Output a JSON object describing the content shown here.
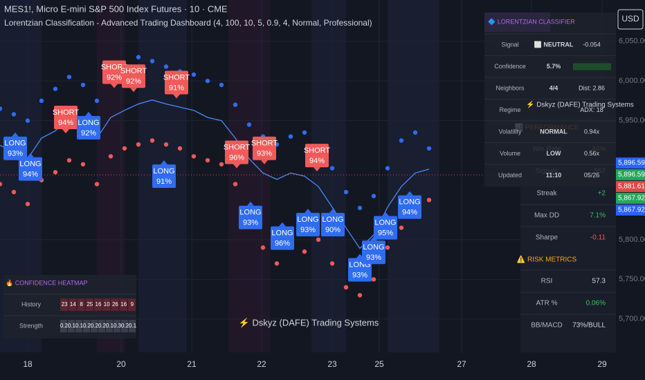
{
  "chart_data": {
    "type": "line",
    "title": "MES1!, Micro E-mini S&P 500 Index Futures · 10 · CME",
    "subtitle": "Lorentzian Classification - Advanced Trading Dashboard (4, 100, 10, 5, 0.9, 4, Normal, Professional)",
    "currency": "USD",
    "watermark": "⚡ Dskyz (DAFE) Trading Systems",
    "overlay_watermark": "⚡ Dskyz (DAFE) Trading Systems",
    "xlim": [
      0,
      890
    ],
    "ylim": [
      5658,
      6102
    ],
    "xticks": [
      {
        "value": 40,
        "label": "18"
      },
      {
        "value": 175,
        "label": "20"
      },
      {
        "value": 277,
        "label": "21"
      },
      {
        "value": 378,
        "label": "22"
      },
      {
        "value": 480,
        "label": "23"
      },
      {
        "value": 548,
        "label": "25"
      },
      {
        "value": 667,
        "label": "27"
      },
      {
        "value": 768,
        "label": "28"
      },
      {
        "value": 870,
        "label": "29"
      }
    ],
    "yticks": [
      {
        "value": 6050,
        "label": "6,050.00"
      },
      {
        "value": 6000,
        "label": "6,000.00"
      },
      {
        "value": 5950,
        "label": "5,950.00"
      },
      {
        "value": 5800,
        "label": "5,800.00"
      },
      {
        "value": 5750,
        "label": "5,750.00"
      },
      {
        "value": 5700,
        "label": "5,700.00"
      }
    ],
    "x": [
      0,
      20,
      40,
      60,
      80,
      100,
      120,
      140,
      160,
      180,
      200,
      220,
      240,
      260,
      280,
      300,
      320,
      340,
      360,
      380,
      400,
      420,
      440,
      460,
      480,
      500,
      520,
      540,
      560,
      580,
      600,
      620
    ],
    "series": [
      {
        "color": "#4a8cf7",
        "values": [
          5919,
          5910,
          5902,
          5928,
          5937,
          5954,
          5945,
          5928,
          5954,
          5963,
          5971,
          5976,
          5971,
          5967,
          5963,
          5954,
          5950,
          5928,
          5902,
          5884,
          5876,
          5884,
          5880,
          5867,
          5841,
          5815,
          5789,
          5806,
          5841,
          5867,
          5884,
          5889
        ]
      },
      {
        "color": "#2f6cf0",
        "dots": true,
        "values": [
          5965,
          5958,
          5950,
          5975,
          5990,
          6005,
          5995,
          5975,
          6010,
          6020,
          6030,
          6025,
          6018,
          6012,
          6008,
          6000,
          5995,
          5970,
          5945,
          5930,
          5920,
          5930,
          5935,
          5915,
          5890,
          5860,
          5840,
          5855,
          5890,
          5925,
          5935,
          5915
        ]
      },
      {
        "color": "#f05a5a",
        "dots": true,
        "values": [
          5870,
          5860,
          5845,
          5875,
          5885,
          5900,
          5895,
          5870,
          5905,
          5915,
          5920,
          5925,
          5920,
          5915,
          5905,
          5900,
          5895,
          5870,
          5840,
          5790,
          5770,
          5790,
          5785,
          5800,
          5770,
          5740,
          5730,
          5750,
          5790,
          5815,
          5835,
          5850
        ]
      }
    ],
    "signals": [
      {
        "text": "LONG",
        "pct": "93%",
        "x": 22,
        "y": 5915
      },
      {
        "text": "LONG",
        "pct": "94%",
        "x": 44,
        "y": 5889
      },
      {
        "text": "SHORT",
        "pct": "94%",
        "x": 95,
        "y": 5954
      },
      {
        "text": "LONG",
        "pct": "92%",
        "x": 128,
        "y": 5941
      },
      {
        "text": "SHORT",
        "pct": "92%",
        "x": 165,
        "y": 6011
      },
      {
        "text": "SHORT",
        "pct": "92%",
        "x": 193,
        "y": 6006
      },
      {
        "text": "SHORT",
        "pct": "91%",
        "x": 255,
        "y": 5998
      },
      {
        "text": "LONG",
        "pct": "91%",
        "x": 237,
        "y": 5880
      },
      {
        "text": "SHORT",
        "pct": "96%",
        "x": 342,
        "y": 5910
      },
      {
        "text": "SHORT",
        "pct": "93%",
        "x": 382,
        "y": 5915
      },
      {
        "text": "SHORT",
        "pct": "94%",
        "x": 458,
        "y": 5906
      },
      {
        "text": "LONG",
        "pct": "93%",
        "x": 362,
        "y": 5828
      },
      {
        "text": "LONG",
        "pct": "96%",
        "x": 408,
        "y": 5802
      },
      {
        "text": "LONG",
        "pct": "93%",
        "x": 445,
        "y": 5819
      },
      {
        "text": "LONG",
        "pct": "90%",
        "x": 481,
        "y": 5819
      },
      {
        "text": "LONG",
        "pct": "93%",
        "x": 520,
        "y": 5762
      },
      {
        "text": "LONG",
        "pct": "93%",
        "x": 540,
        "y": 5784
      },
      {
        "text": "LONG",
        "pct": "95%",
        "x": 557,
        "y": 5815
      },
      {
        "text": "LONG",
        "pct": "94%",
        "x": 592,
        "y": 5841
      }
    ],
    "price_tags": [
      {
        "value": 5896.59,
        "label": "5,896.59",
        "color": "#2962ff"
      },
      {
        "value": 5896.59,
        "label": "5,896.59",
        "color": "#26a65b"
      },
      {
        "value": 5881.61,
        "label": "5,881.61",
        "color": "#e04848"
      },
      {
        "value": 5867.92,
        "label": "5,867.92",
        "color": "#26a65b"
      },
      {
        "value": 5867.92,
        "label": "5,867.92",
        "color": "#2962ff"
      }
    ]
  },
  "classifier": {
    "title": "🔷 LORENTZIAN CLASSIFIER",
    "rows": [
      {
        "label": "Signal",
        "value": "⬜ NEUTRAL",
        "extra": "-0.054"
      },
      {
        "label": "Confidence",
        "value": "5.7%"
      },
      {
        "label": "Neighbors",
        "value": "4/4",
        "extra": "Dist: 2.86"
      },
      {
        "label": "Regime",
        "extra": "ADX: 18"
      },
      {
        "label": "Volatility",
        "value": "NORMAL",
        "extra": "0.94x"
      },
      {
        "label": "Volume",
        "value": "LOW",
        "extra": "0.56x"
      },
      {
        "label": "Updated",
        "value": "11:10",
        "extra": "05/26"
      }
    ]
  },
  "performance": [
    {
      "title": "📊 PERFORMANCE",
      "rows": [
        {
          "label": "Win Rate",
          "value": "46%",
          "color": "#f5a623"
        },
        {
          "label": "Signals",
          "value": "557",
          "color": "#d1d4dc"
        },
        {
          "label": "Streak",
          "value": "+2",
          "color": "#3fbf5f"
        },
        {
          "label": "Max DD",
          "value": "7.1%",
          "color": "#3fbf5f"
        },
        {
          "label": "Sharpe",
          "value": "-0.11",
          "color": "#f05a5a"
        }
      ]
    },
    {
      "title": "⚠️ RISK METRICS",
      "rows": [
        {
          "label": "RSI",
          "value": "57.3",
          "color": "#d1d4dc"
        },
        {
          "label": "ATR %",
          "value": "0.06%",
          "color": "#3fbf5f"
        },
        {
          "label": "BB/MACD",
          "value": "73%/BULL",
          "color": "#d1d4dc"
        }
      ]
    }
  ],
  "heatmap": {
    "title": "🔥 CONFIDENCE HEATMAP",
    "rows": [
      {
        "label": "History",
        "cells": [
          "23",
          "14",
          "8",
          "25",
          "16",
          "10",
          "26",
          "16",
          "9"
        ]
      },
      {
        "label": "Strength",
        "cells": [
          "0.2",
          "0.1",
          "0.1",
          "0.2",
          "0.2",
          "0.2",
          "0.1",
          "0.3",
          "0.2",
          "0.1"
        ]
      }
    ]
  }
}
